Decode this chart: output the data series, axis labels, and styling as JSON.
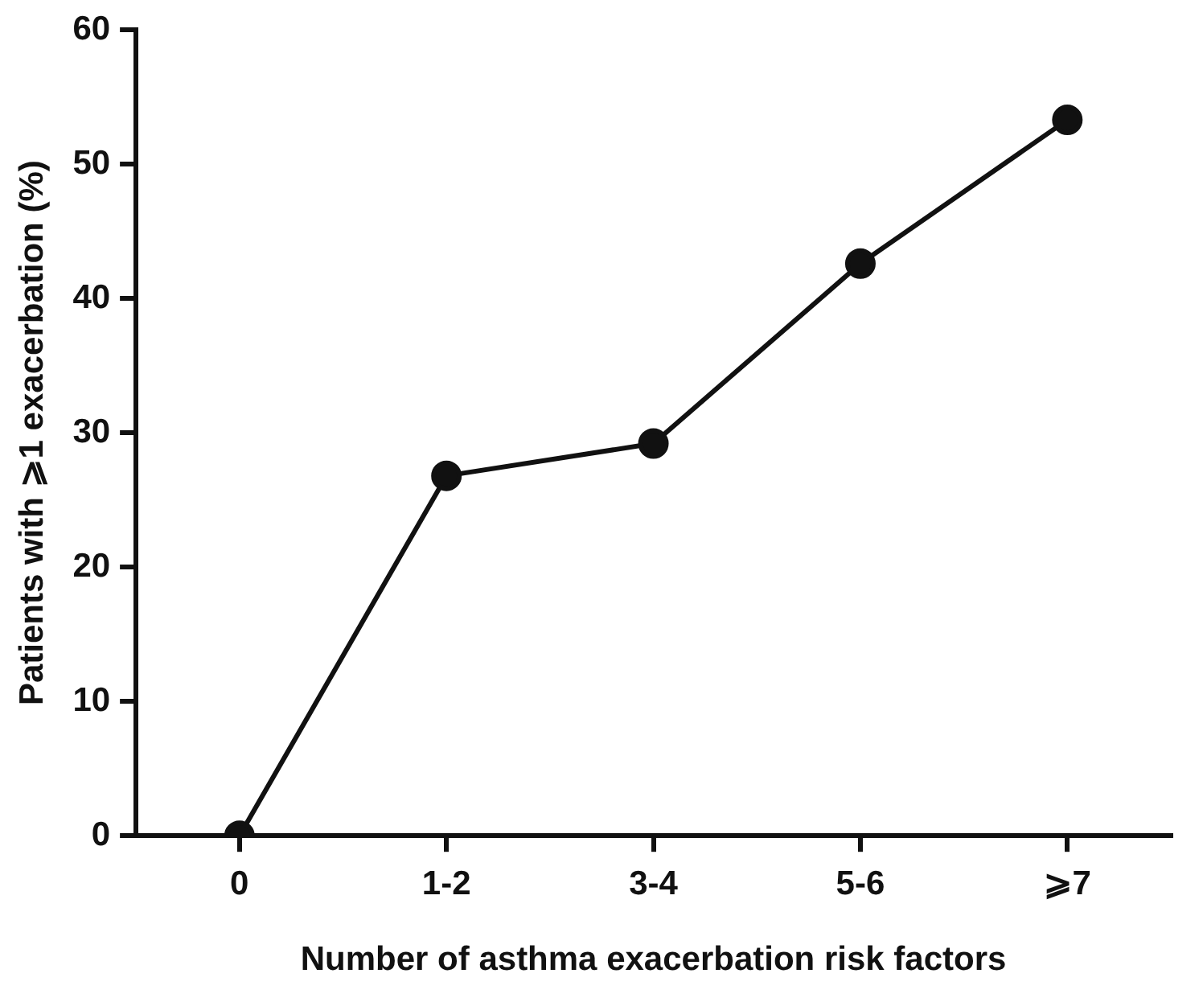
{
  "chart_data": {
    "type": "line",
    "xlabel": "Number of asthma exacerbation risk factors",
    "ylabel": "Patients with ⩾1 exacerbation (%)",
    "categories": [
      "0",
      "1-2",
      "3-4",
      "5-6",
      "⩾7"
    ],
    "series": [
      {
        "color": "#111111",
        "values": [
          0,
          26.8,
          29.2,
          42.6,
          53.3
        ]
      }
    ],
    "ylim": [
      0,
      60
    ],
    "yticks": [
      0,
      10,
      20,
      30,
      40,
      50,
      60
    ],
    "grid": false,
    "legend": false,
    "marker": "circle",
    "line_style": "solid"
  }
}
